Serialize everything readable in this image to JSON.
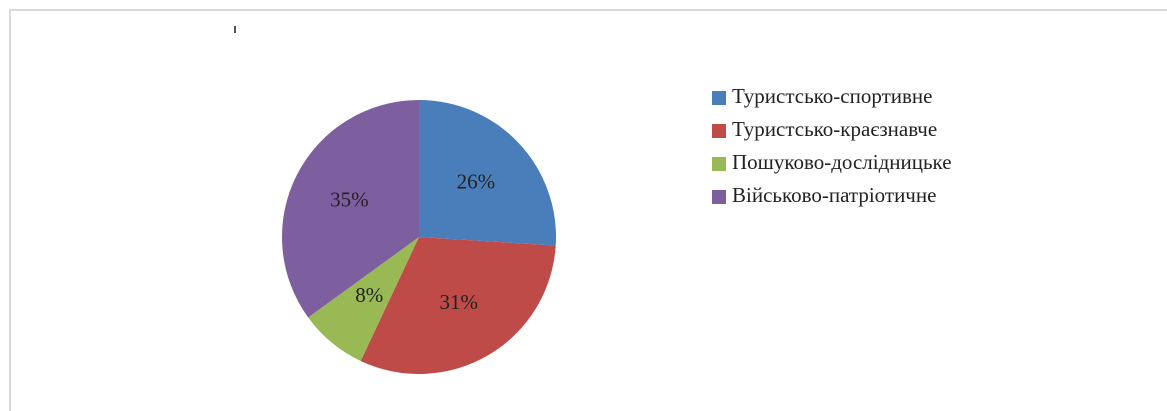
{
  "chart_data": {
    "type": "pie",
    "categories": [
      "Туристсько-спортивне",
      "Туристсько-краєзнавче",
      "Пошуково-дослідницьке",
      "Військово-патріотичне"
    ],
    "values": [
      26,
      31,
      8,
      35
    ],
    "value_labels": [
      "26%",
      "31%",
      "8%",
      "35%"
    ],
    "colors": [
      "#4a7ebb",
      "#be4b48",
      "#98b954",
      "#7d5fa0"
    ],
    "legend": "right"
  }
}
